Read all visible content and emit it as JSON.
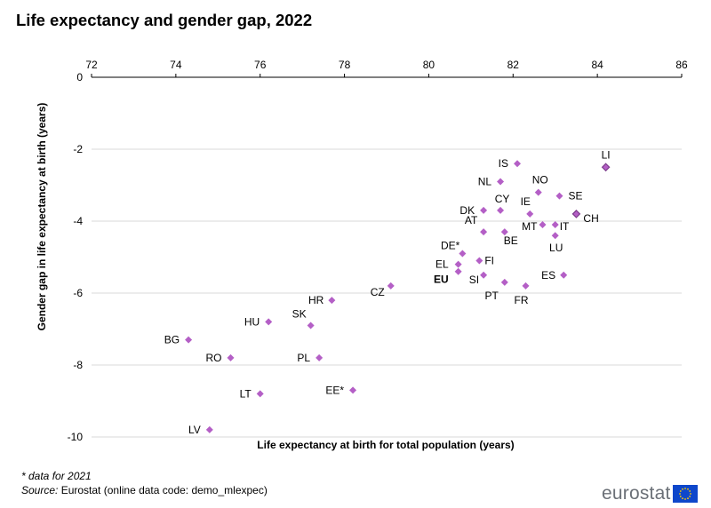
{
  "title": "Life expectancy and gender gap, 2022",
  "footnote": "* data for 2021",
  "source": {
    "label": "Source:",
    "text": "Eurostat (online data code: demo_mlexpec)"
  },
  "logo_text": "eurostat",
  "colors": {
    "point": "#b45fc6",
    "point_highlight": "#7b3a8a",
    "grid": "#d9d9d9",
    "axis": "#000000",
    "flag_blue": "#0e47cb",
    "flag_star": "#ffcc00"
  },
  "chart_data": {
    "type": "scatter",
    "xlabel": "Life expectancy at birth for total population (years)",
    "ylabel": "Gender gap in life expectancy at birth (years)",
    "xlim": [
      72,
      86
    ],
    "ylim": [
      -10,
      0
    ],
    "x_ticks": [
      72,
      74,
      76,
      78,
      80,
      82,
      84,
      86
    ],
    "y_ticks": [
      0,
      -2,
      -4,
      -6,
      -8,
      -10
    ],
    "x_axis_position": "top",
    "grid": "horizontal",
    "points": [
      {
        "label": "LI",
        "x": 84.2,
        "y": -2.5,
        "highlight": true
      },
      {
        "label": "IS",
        "x": 82.1,
        "y": -2.4
      },
      {
        "label": "NL",
        "x": 81.7,
        "y": -2.9
      },
      {
        "label": "NO",
        "x": 82.6,
        "y": -3.2
      },
      {
        "label": "SE",
        "x": 83.1,
        "y": -3.3
      },
      {
        "label": "CY",
        "x": 81.7,
        "y": -3.7
      },
      {
        "label": "DK",
        "x": 81.3,
        "y": -3.7
      },
      {
        "label": "IE",
        "x": 82.4,
        "y": -3.8
      },
      {
        "label": "CH",
        "x": 83.5,
        "y": -3.8,
        "highlight": true
      },
      {
        "label": "MT",
        "x": 82.7,
        "y": -4.1
      },
      {
        "label": "IT",
        "x": 83.0,
        "y": -4.1
      },
      {
        "label": "AT",
        "x": 81.3,
        "y": -4.3
      },
      {
        "label": "BE",
        "x": 81.8,
        "y": -4.3
      },
      {
        "label": "LU",
        "x": 83.0,
        "y": -4.4
      },
      {
        "label": "DE*",
        "x": 80.8,
        "y": -4.9
      },
      {
        "label": "FI",
        "x": 81.2,
        "y": -5.1
      },
      {
        "label": "EL",
        "x": 80.7,
        "y": -5.2
      },
      {
        "label": "EU",
        "x": 80.7,
        "y": -5.4,
        "bold": true
      },
      {
        "label": "SI",
        "x": 81.3,
        "y": -5.5
      },
      {
        "label": "ES",
        "x": 83.2,
        "y": -5.5
      },
      {
        "label": "PT",
        "x": 81.8,
        "y": -5.7
      },
      {
        "label": "FR",
        "x": 82.3,
        "y": -5.8
      },
      {
        "label": "CZ",
        "x": 79.1,
        "y": -5.8
      },
      {
        "label": "HR",
        "x": 77.7,
        "y": -6.2
      },
      {
        "label": "HU",
        "x": 76.2,
        "y": -6.8
      },
      {
        "label": "SK",
        "x": 77.2,
        "y": -6.9
      },
      {
        "label": "BG",
        "x": 74.3,
        "y": -7.3
      },
      {
        "label": "RO",
        "x": 75.3,
        "y": -7.8
      },
      {
        "label": "PL",
        "x": 77.4,
        "y": -7.8
      },
      {
        "label": "LT",
        "x": 76.0,
        "y": -8.8
      },
      {
        "label": "EE*",
        "x": 78.2,
        "y": -8.7
      },
      {
        "label": "LV",
        "x": 74.8,
        "y": -9.8
      }
    ]
  }
}
